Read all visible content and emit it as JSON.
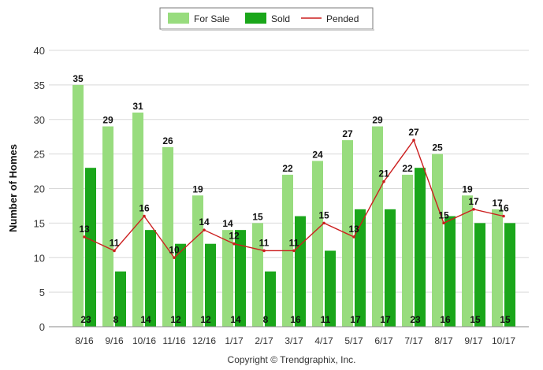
{
  "chart_data": {
    "type": "bar",
    "categories": [
      "8/16",
      "9/16",
      "10/16",
      "11/16",
      "12/16",
      "1/17",
      "2/17",
      "3/17",
      "4/17",
      "5/17",
      "6/17",
      "7/17",
      "8/17",
      "9/17",
      "10/17"
    ],
    "series": [
      {
        "name": "For Sale",
        "type": "bar",
        "color": "#98dc7e",
        "values": [
          35,
          29,
          31,
          26,
          19,
          14,
          15,
          22,
          24,
          27,
          29,
          22,
          25,
          19,
          17
        ]
      },
      {
        "name": "Sold",
        "type": "bar",
        "color": "#1aa61a",
        "values": [
          23,
          8,
          14,
          12,
          12,
          14,
          8,
          16,
          11,
          17,
          17,
          23,
          16,
          15,
          15
        ]
      },
      {
        "name": "Pended",
        "type": "line",
        "color": "#cc1f1f",
        "values": [
          13,
          11,
          16,
          10,
          14,
          12,
          11,
          11,
          15,
          13,
          21,
          27,
          15,
          17,
          16
        ]
      }
    ],
    "ylabel": "Number of Homes",
    "ylim": [
      0,
      40
    ],
    "yticks": [
      0,
      5,
      10,
      15,
      20,
      25,
      30,
      35,
      40
    ],
    "grid": true,
    "legend": "top-center"
  },
  "footer": {
    "copyright": "Copyright © Trendgraphix, Inc."
  }
}
